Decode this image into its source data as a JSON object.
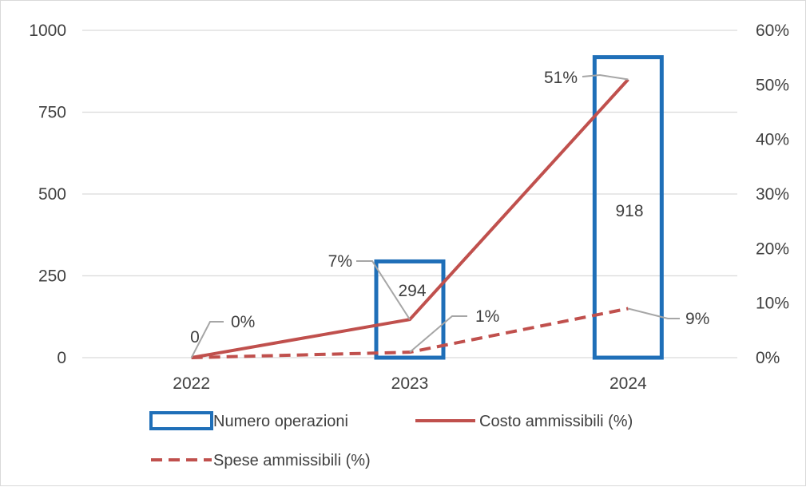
{
  "chart_data": {
    "type": "bar",
    "categories": [
      "2022",
      "2023",
      "2024"
    ],
    "series": [
      {
        "name": "Numero operazioni",
        "type": "bar",
        "axis": "left",
        "values": [
          0,
          294,
          918
        ],
        "labels": [
          "0",
          "294",
          "918"
        ],
        "color": "#1f6fb8"
      },
      {
        "name": "Costo ammissibili (%)",
        "type": "line",
        "axis": "right",
        "style": "solid",
        "values": [
          0,
          7,
          51
        ],
        "labels": [
          "0%",
          "7%",
          "51%"
        ],
        "color": "#c0504d"
      },
      {
        "name": "Spese ammissibili (%)",
        "type": "line",
        "axis": "right",
        "style": "dashed",
        "values": [
          0,
          1,
          9
        ],
        "labels": [
          "0%",
          "1%",
          "9%"
        ],
        "color": "#c0504d"
      }
    ],
    "y_left": {
      "ylim": [
        0,
        1000
      ],
      "ticks": [
        "1000",
        "750",
        "500",
        "250",
        "0"
      ]
    },
    "y_right": {
      "ylim": [
        0,
        60
      ],
      "ticks": [
        "60%",
        "50%",
        "40%",
        "30%",
        "20%",
        "10%",
        "0%"
      ]
    },
    "grid": true,
    "legend": "bottom",
    "title": "",
    "xlabel": "",
    "ylabel": ""
  },
  "colors": {
    "bar": "#1f6fb8",
    "line": "#c0504d",
    "grid": "#d9d9d9",
    "leader": "#a6a6a6",
    "text": "#404040"
  }
}
